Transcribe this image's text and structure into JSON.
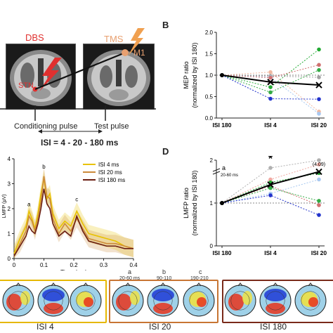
{
  "panelA": {
    "dbs_label": "DBS",
    "stn_label": "STN",
    "tms_label": "TMS",
    "m1_label": "M1",
    "conditioning_label": "Conditioning pulse",
    "test_label": "Test pulse",
    "isi_label": "ISI = 4 - 20 - 180 ms",
    "colors": {
      "dbs": "#e0302f",
      "tms": "#e8a070",
      "bolt": "#f0a050"
    }
  },
  "panelB": {
    "letter": "B",
    "ylabel_line1": "MEP ratio",
    "ylabel_line2": "(normalized by ISI 180)"
  },
  "panelC": {
    "letter": "",
    "legend": [
      "ISI 4 ms",
      "ISI 20 ms",
      "ISI 180 ms"
    ],
    "ann_a": "a",
    "ann_b": "b",
    "ann_c": "c",
    "xlabel": "Time (ms)",
    "ylabel": "LMFP (μV)"
  },
  "panelD": {
    "letter": "D",
    "ylabel_line1": "LMFP ratio",
    "ylabel_line2": "(normalized by ISI 180)",
    "ann_a": "a",
    "ann_a_range": "20-60 ms",
    "outlier_label": "(4.09)",
    "star": "*"
  },
  "topomaps": {
    "groups": [
      {
        "caption": "ISI 4",
        "color": "#e6b800"
      },
      {
        "caption": "ISI 20",
        "color": "#c87533"
      },
      {
        "caption": "ISI 180",
        "color": "#7a2a1a"
      }
    ],
    "windows": [
      {
        "letter": "a",
        "range": "20-60 ms"
      },
      {
        "letter": "b",
        "range": "90-110"
      },
      {
        "letter": "c",
        "range": "190-210"
      }
    ]
  },
  "chart_data": [
    {
      "type": "line",
      "title": "",
      "xlabel": "",
      "ylabel": "MEP ratio (normalized by ISI 180)",
      "categories": [
        "ISI 180",
        "ISI 4",
        "ISI 20"
      ],
      "ylim": [
        0,
        2.0
      ],
      "yticks": [
        0,
        0.5,
        1.0,
        1.5,
        2.0
      ],
      "reference_line": 1.0,
      "series": [
        {
          "values": [
            1.0,
            0.84,
            0.77
          ],
          "color": "#000000",
          "style": "mean",
          "marker": "x"
        },
        {
          "values": [
            1.0,
            0.72,
            1.6
          ],
          "color": "#22aa33"
        },
        {
          "values": [
            1.0,
            1.07,
            0.15
          ],
          "color": "#f0b8a0"
        },
        {
          "values": [
            1.0,
            0.98,
            0.95
          ],
          "color": "#a0a0a0"
        },
        {
          "values": [
            1.0,
            0.95,
            0.1
          ],
          "color": "#a8c8f0"
        },
        {
          "values": [
            1.0,
            0.94,
            1.24
          ],
          "color": "#d07070"
        },
        {
          "values": [
            1.0,
            0.6,
            1.12
          ],
          "color": "#33aa44"
        },
        {
          "values": [
            1.0,
            0.45,
            0.44
          ],
          "color": "#2233cc"
        }
      ]
    },
    {
      "type": "line",
      "title": "",
      "xlabel": "Time (ms)",
      "ylabel": "LMFP (μV)",
      "xlim": [
        0,
        0.4
      ],
      "ylim": [
        0,
        4
      ],
      "xticks": [
        0,
        0.1,
        0.2,
        0.3,
        0.4
      ],
      "yticks": [
        0,
        1,
        2,
        3,
        4
      ],
      "x": [
        0.0,
        0.02,
        0.04,
        0.05,
        0.06,
        0.07,
        0.08,
        0.09,
        0.1,
        0.11,
        0.12,
        0.13,
        0.15,
        0.17,
        0.19,
        0.21,
        0.23,
        0.25,
        0.28,
        0.31,
        0.34,
        0.37,
        0.4
      ],
      "series": [
        {
          "name": "ISI 4 ms",
          "color": "#e8c200",
          "values": [
            0.2,
            0.8,
            1.3,
            1.9,
            1.6,
            1.2,
            1.8,
            2.6,
            3.2,
            2.4,
            2.6,
            1.8,
            1.2,
            1.5,
            1.3,
            1.9,
            1.4,
            1.0,
            0.9,
            0.8,
            0.7,
            0.5,
            0.4
          ]
        },
        {
          "name": "ISI 20 ms",
          "color": "#cc8a3a",
          "values": [
            0.1,
            0.6,
            1.1,
            1.7,
            1.5,
            1.1,
            1.6,
            2.3,
            3.3,
            2.5,
            2.4,
            1.6,
            1.0,
            1.4,
            1.1,
            1.6,
            1.2,
            0.8,
            0.7,
            0.6,
            0.6,
            0.5,
            0.4
          ]
        },
        {
          "name": "ISI 180 ms",
          "color": "#6b1e12",
          "values": [
            0.1,
            0.5,
            0.9,
            1.3,
            1.1,
            1.0,
            1.4,
            2.0,
            2.8,
            2.2,
            2.0,
            1.4,
            0.9,
            1.1,
            0.9,
            1.7,
            1.1,
            0.7,
            0.6,
            0.5,
            0.5,
            0.4,
            0.4
          ]
        }
      ],
      "annotations": [
        {
          "text": "a",
          "x": 0.05
        },
        {
          "text": "b",
          "x": 0.1
        },
        {
          "text": "c",
          "x": 0.21
        }
      ]
    },
    {
      "type": "line",
      "title": "",
      "xlabel": "",
      "ylabel": "LMFP ratio (normalized by ISI 180)",
      "categories": [
        "ISI 180",
        "ISI 4",
        "ISI 20"
      ],
      "ylim": [
        0,
        2
      ],
      "yticks": [
        0,
        1,
        2
      ],
      "axis_break": true,
      "reference_line": 1.0,
      "series": [
        {
          "values": [
            1.0,
            1.43,
            1.73
          ],
          "color": "#000000",
          "style": "mean",
          "marker": "x"
        },
        {
          "values": [
            1.0,
            1.82,
            4.09
          ],
          "color": "#b0b0b0"
        },
        {
          "values": [
            1.0,
            1.55,
            1.9
          ],
          "color": "#f0a8a0"
        },
        {
          "values": [
            1.0,
            1.48,
            1.7
          ],
          "color": "#22aa33"
        },
        {
          "values": [
            1.0,
            1.22,
            1.55
          ],
          "color": "#a8c8f0"
        },
        {
          "values": [
            1.0,
            1.4,
            0.95
          ],
          "color": "#d07070"
        },
        {
          "values": [
            1.0,
            1.18,
            0.72
          ],
          "color": "#2233cc"
        },
        {
          "values": [
            1.0,
            1.35,
            1.05
          ],
          "color": "#33aa44"
        }
      ]
    }
  ]
}
